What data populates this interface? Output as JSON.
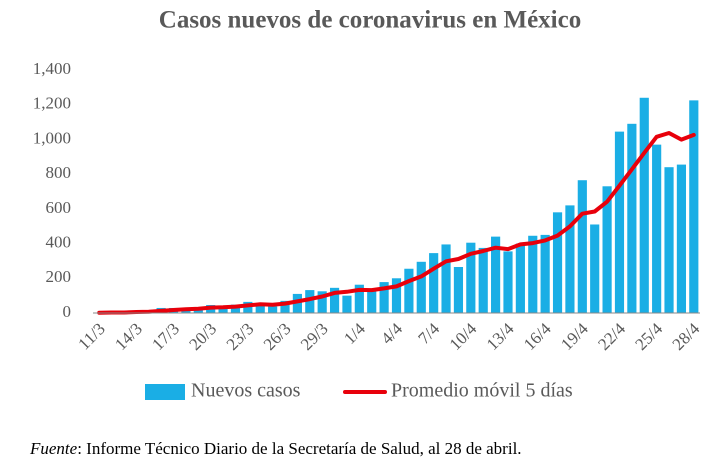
{
  "chart_data": {
    "type": "bar_line",
    "title": "Casos nuevos de coronavirus en México",
    "categories": [
      "11/3",
      null,
      null,
      "14/3",
      null,
      null,
      "17/3",
      null,
      null,
      "20/3",
      null,
      null,
      "23/3",
      null,
      null,
      "26/3",
      null,
      null,
      "29/3",
      null,
      null,
      "1/4",
      null,
      null,
      "4/4",
      null,
      null,
      "7/4",
      null,
      null,
      "10/4",
      null,
      null,
      "13/4",
      null,
      null,
      "16/4",
      null,
      null,
      "19/4",
      null,
      null,
      "22/4",
      null,
      null,
      "25/4",
      null,
      null,
      "28/4"
    ],
    "series": [
      {
        "name": "Nuevos casos",
        "kind": "bar",
        "color": "#1aaee5",
        "values": [
          2,
          4,
          4,
          12,
          12,
          29,
          29,
          26,
          25,
          46,
          39,
          48,
          64,
          51,
          38,
          70,
          110,
          132,
          125,
          145,
          100,
          163,
          125,
          178,
          200,
          255,
          295,
          345,
          395,
          265,
          405,
          375,
          440,
          355,
          400,
          445,
          450,
          580,
          620,
          765,
          510,
          730,
          1045,
          1090,
          1240,
          970,
          840,
          855,
          1225
        ]
      },
      {
        "name": "Promedio móvil 5 días",
        "kind": "line",
        "color": "#e8000b",
        "values": [
          2,
          3,
          3,
          6,
          7,
          12,
          17,
          22,
          24,
          31,
          33,
          37,
          44,
          50,
          48,
          54,
          67,
          80,
          95,
          116,
          122,
          133,
          132,
          142,
          153,
          184,
          211,
          255,
          298,
          311,
          341,
          357,
          376,
          368,
          395,
          403,
          418,
          446,
          499,
          572,
          585,
          641,
          734,
          828,
          923,
          1015,
          1037,
          999,
          1026
        ]
      }
    ],
    "ylim": [
      0,
      1400
    ],
    "yticks": [
      0,
      200,
      400,
      600,
      800,
      {
        "value": 1000,
        "label": "1,000"
      },
      {
        "value": 1200,
        "label": "1,200"
      },
      {
        "value": 1400,
        "label": "1,400"
      }
    ],
    "grid": false,
    "legend": "bottom",
    "source_label": "Fuente",
    "source_text": ": Informe Técnico Diario de la Secretaría de Salud, al 28 de abril."
  }
}
